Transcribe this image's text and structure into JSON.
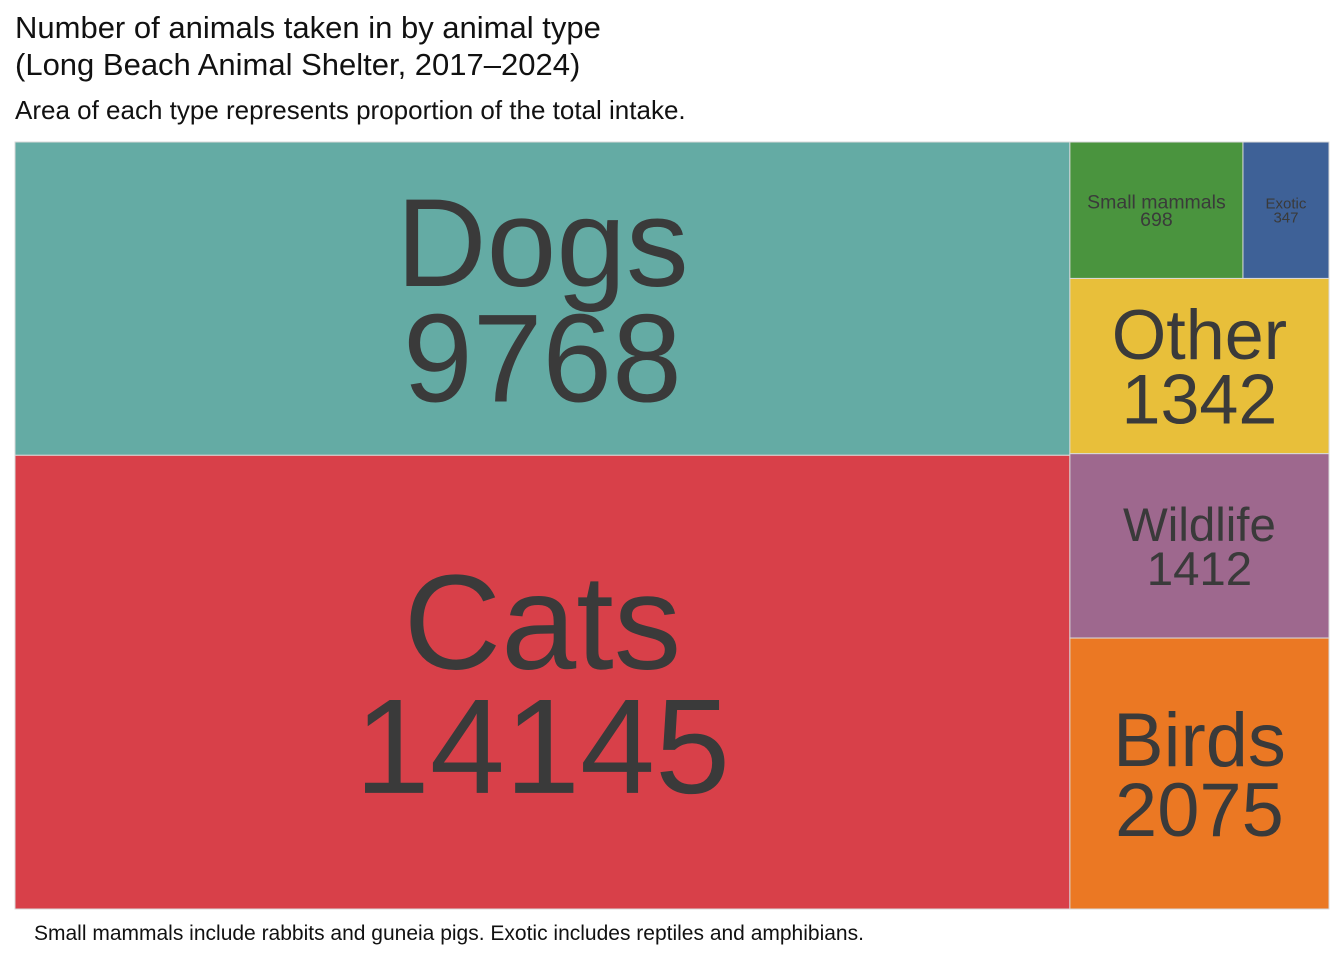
{
  "chart_data": {
    "type": "treemap",
    "title": "Number of animals taken in by animal type\n(Long Beach Animal Shelter, 2017–2024)",
    "subtitle": "Area of each type represents proportion of the total intake.",
    "caption": "Small mammals include rabbits and guneia pigs. Exotic includes reptiles and amphibians.",
    "items": [
      {
        "label": "Cats",
        "value": 14145,
        "color": "#d84049"
      },
      {
        "label": "Dogs",
        "value": 9768,
        "color": "#64aba4"
      },
      {
        "label": "Birds",
        "value": 2075,
        "color": "#eb7823"
      },
      {
        "label": "Wildlife",
        "value": 1412,
        "color": "#9e688e"
      },
      {
        "label": "Other",
        "value": 1342,
        "color": "#e8bf3a"
      },
      {
        "label": "Small mammals",
        "value": 698,
        "color": "#4a943e"
      },
      {
        "label": "Exotic",
        "value": 347,
        "color": "#3e6197"
      }
    ],
    "label_color": "#3a3a3a"
  }
}
